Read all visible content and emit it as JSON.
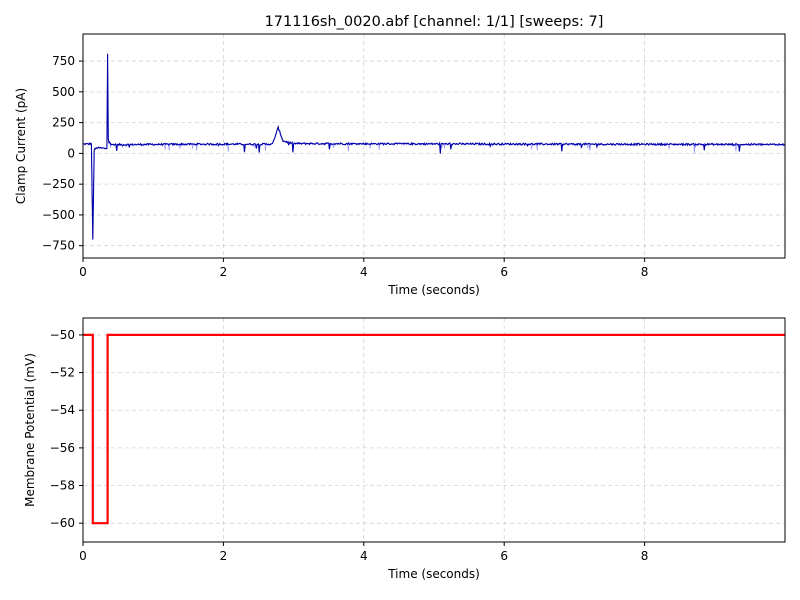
{
  "chart_data": [
    {
      "type": "line",
      "title": "171116sh_0020.abf [channel: 1/1] [sweeps: 7]",
      "xlabel": "Time (seconds)",
      "ylabel": "Clamp Current (pA)",
      "xlim": [
        0,
        10
      ],
      "ylim": [
        -850,
        970
      ],
      "xticks": [
        0,
        2,
        4,
        6,
        8
      ],
      "yticks": [
        -750,
        -500,
        -250,
        0,
        250,
        500,
        750
      ],
      "grid": true,
      "series": [
        {
          "color": "#0000ff",
          "baseline": 75,
          "points": [
            [
              0,
              75
            ],
            [
              0.12,
              78
            ],
            [
              0.14,
              -700
            ],
            [
              0.16,
              30
            ],
            [
              0.2,
              45
            ],
            [
              0.34,
              40
            ],
            [
              0.35,
              810
            ],
            [
              0.36,
              120
            ],
            [
              0.4,
              70
            ],
            [
              0.8,
              72
            ],
            [
              1.6,
              75
            ],
            [
              2.7,
              75
            ],
            [
              2.78,
              210
            ],
            [
              2.85,
              100
            ],
            [
              3.0,
              80
            ],
            [
              4.0,
              78
            ],
            [
              6.0,
              76
            ],
            [
              8.0,
              74
            ],
            [
              10.0,
              72
            ]
          ]
        }
      ]
    },
    {
      "type": "line",
      "title": "",
      "xlabel": "Time (seconds)",
      "ylabel": "Membrane Potential (mV)",
      "xlim": [
        0,
        10
      ],
      "ylim": [
        -61,
        -49.1
      ],
      "xticks": [
        0,
        2,
        4,
        6,
        8
      ],
      "yticks": [
        -60,
        -58,
        -56,
        -54,
        -52,
        -50
      ],
      "grid": true,
      "series": [
        {
          "color": "#ff0000",
          "points": [
            [
              0,
              -50
            ],
            [
              0.14,
              -50
            ],
            [
              0.14,
              -60
            ],
            [
              0.35,
              -60
            ],
            [
              0.35,
              -50
            ],
            [
              10,
              -50
            ]
          ]
        }
      ]
    }
  ]
}
